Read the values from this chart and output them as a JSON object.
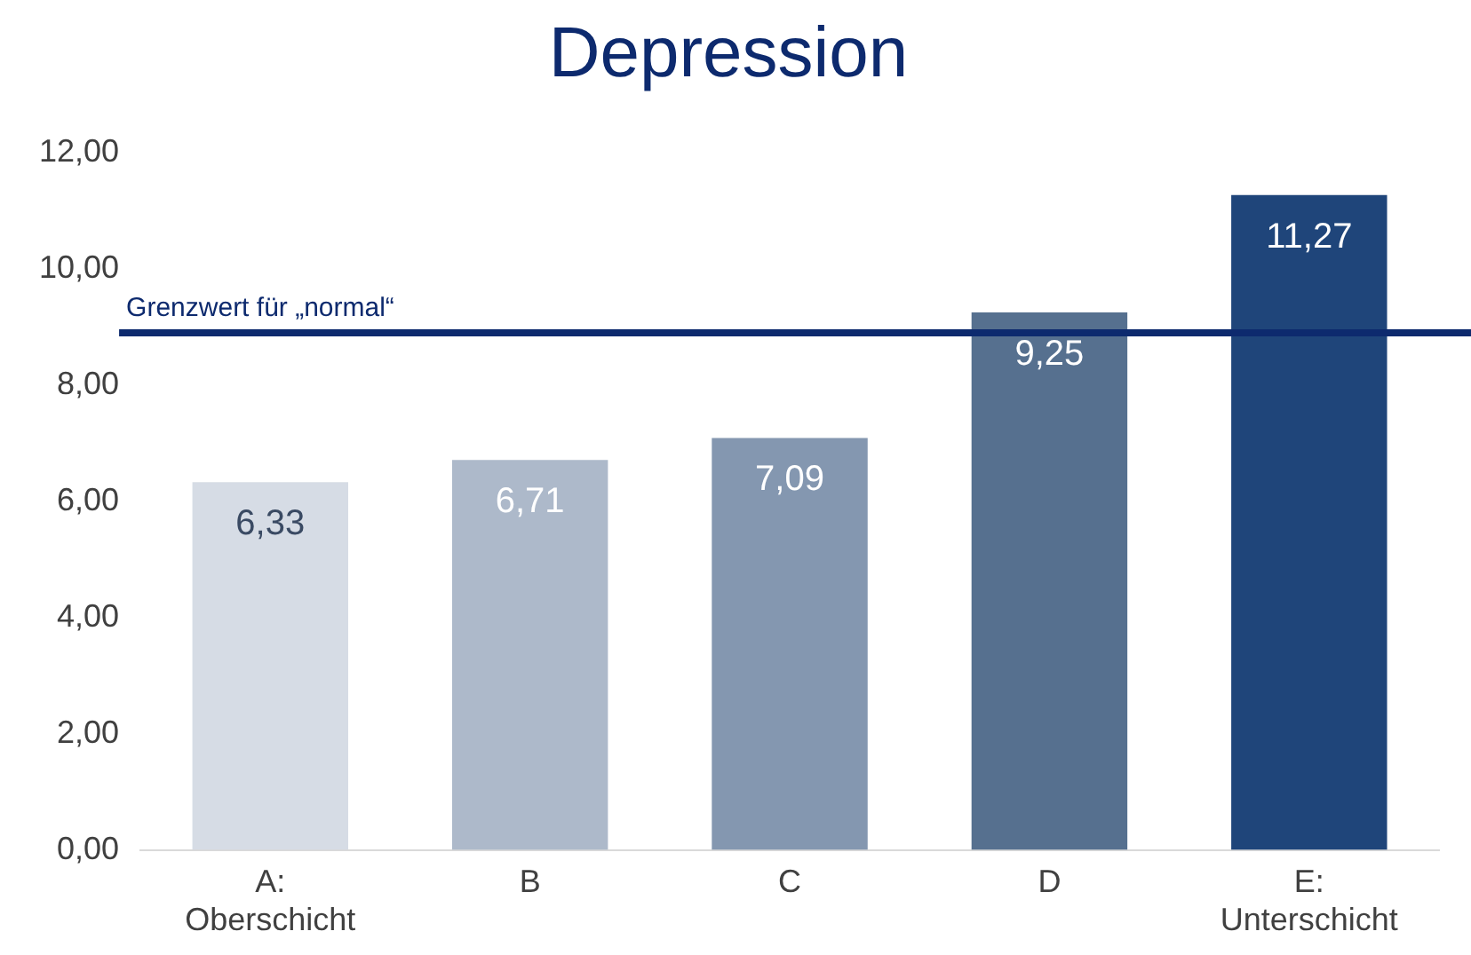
{
  "chart_data": {
    "type": "bar",
    "title": "Depression",
    "categories": [
      "A: Oberschicht",
      "B",
      "C",
      "D",
      "E: Unterschicht"
    ],
    "values": [
      6.33,
      6.71,
      7.09,
      9.25,
      11.27
    ],
    "colors": [
      "#d6dce5",
      "#adb9ca",
      "#8497b0",
      "#56708f",
      "#1f457a"
    ],
    "value_labels": [
      "6,33",
      "6,71",
      "7,09",
      "9,25",
      "11,27"
    ],
    "ylim": [
      0,
      12
    ],
    "yticks": [
      {
        "value": 0,
        "label": "0,00"
      },
      {
        "value": 2,
        "label": "2,00"
      },
      {
        "value": 4,
        "label": "4,00"
      },
      {
        "value": 6,
        "label": "6,00"
      },
      {
        "value": 8,
        "label": "8,00"
      },
      {
        "value": 10,
        "label": "10,00"
      },
      {
        "value": 12,
        "label": "12,00"
      }
    ],
    "ref_lines": [
      {
        "axis": "y",
        "value": 8.9,
        "label": "Grenzwert für „normal“",
        "color": "#0d2a6e"
      }
    ],
    "grid": false,
    "legend": false
  }
}
